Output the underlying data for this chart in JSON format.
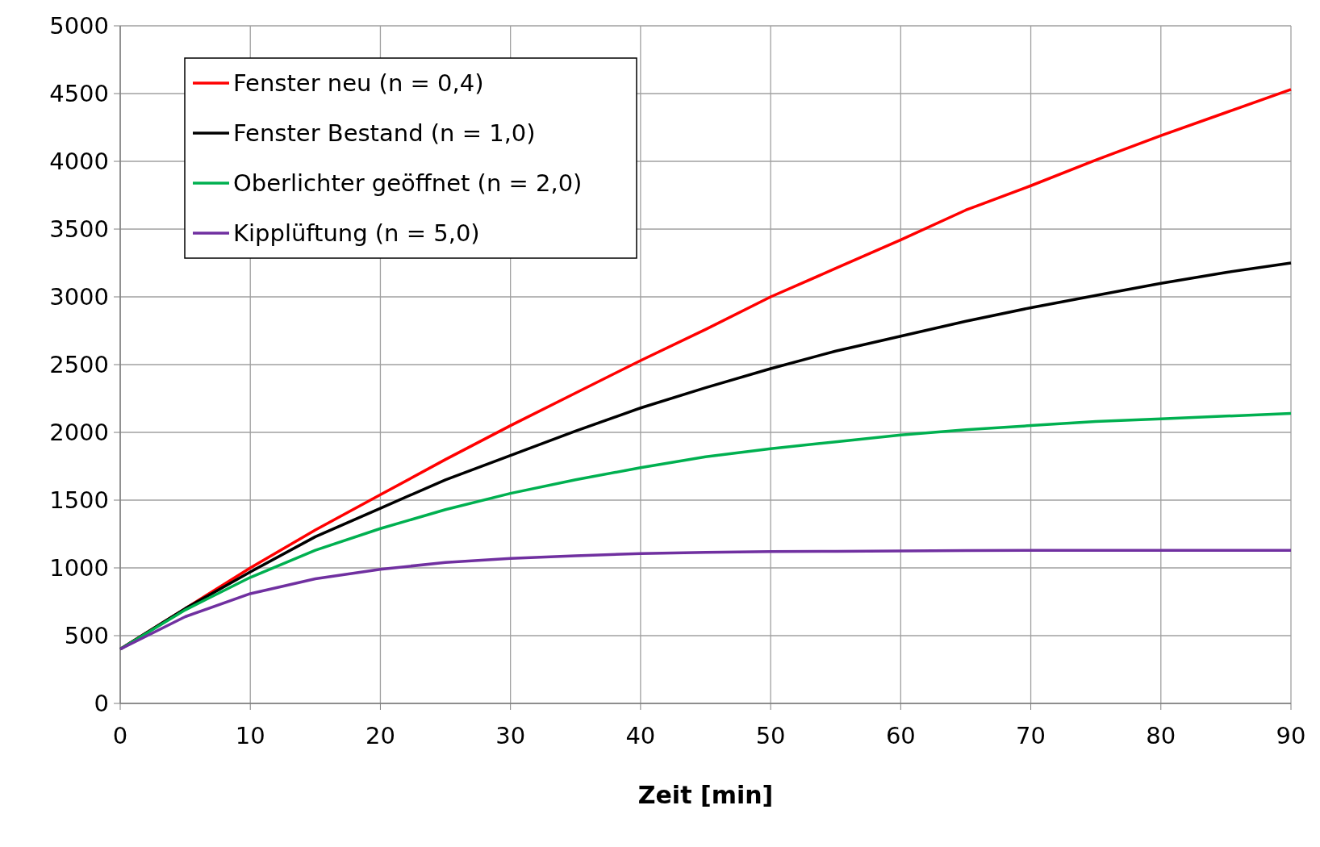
{
  "chart_data": {
    "type": "line",
    "xlabel": "Zeit [min]",
    "x": [
      0,
      5,
      10,
      15,
      20,
      25,
      30,
      35,
      40,
      45,
      50,
      55,
      60,
      65,
      70,
      75,
      80,
      85,
      90
    ],
    "series": [
      {
        "name": "Fenster neu (n = 0,4)",
        "color": "#ff0000",
        "values": [
          400,
          700,
          1000,
          1280,
          1540,
          1800,
          2050,
          2290,
          2530,
          2760,
          3000,
          3210,
          3420,
          3640,
          3820,
          4010,
          4190,
          4360,
          4530
        ]
      },
      {
        "name": "Fenster Bestand (n = 1,0)",
        "color": "#000000",
        "values": [
          400,
          700,
          970,
          1230,
          1440,
          1650,
          1830,
          2010,
          2180,
          2330,
          2470,
          2600,
          2710,
          2820,
          2920,
          3010,
          3100,
          3180,
          3250
        ]
      },
      {
        "name": "Oberlichter geöffnet (n = 2,0)",
        "color": "#00b050",
        "values": [
          400,
          690,
          930,
          1130,
          1290,
          1430,
          1550,
          1650,
          1740,
          1820,
          1880,
          1930,
          1980,
          2020,
          2050,
          2080,
          2100,
          2120,
          2140
        ]
      },
      {
        "name": "Kipplüftung (n = 5,0)",
        "color": "#7030a0",
        "values": [
          400,
          640,
          810,
          920,
          990,
          1040,
          1070,
          1090,
          1105,
          1115,
          1120,
          1122,
          1125,
          1128,
          1130,
          1130,
          1130,
          1130,
          1130
        ]
      }
    ],
    "xlim": [
      0,
      90
    ],
    "xticks": [
      0,
      10,
      20,
      30,
      40,
      50,
      60,
      70,
      80,
      90
    ],
    "ylim": [
      0,
      5000
    ],
    "yticks": [
      0,
      500,
      1000,
      1500,
      2000,
      2500,
      3000,
      3500,
      4000,
      4500,
      5000
    ],
    "grid": true,
    "legend": "top left",
    "marker": "none",
    "line_style": "solid"
  }
}
